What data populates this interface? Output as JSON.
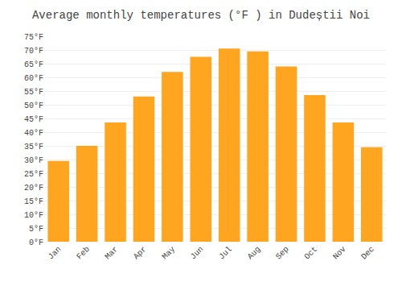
{
  "chart_data": {
    "type": "bar",
    "title": "Average monthly temperatures (°F ) in Dudeștii Noi",
    "categories": [
      "Jan",
      "Feb",
      "Mar",
      "Apr",
      "May",
      "Jun",
      "Jul",
      "Aug",
      "Sep",
      "Oct",
      "Nov",
      "Dec"
    ],
    "values": [
      29.5,
      35.0,
      43.5,
      53.0,
      62.0,
      67.5,
      70.5,
      69.5,
      64.0,
      53.5,
      43.5,
      34.5
    ],
    "color": "#FFA520",
    "ylim": [
      0,
      75
    ],
    "yticks": [
      {
        "value": 0,
        "label": "0°F"
      },
      {
        "value": 5,
        "label": "5°F"
      },
      {
        "value": 10,
        "label": "10°F"
      },
      {
        "value": 15,
        "label": "15°F"
      },
      {
        "value": 20,
        "label": "20°F"
      },
      {
        "value": 25,
        "label": "25°F"
      },
      {
        "value": 30,
        "label": "30°F"
      },
      {
        "value": 35,
        "label": "35°F"
      },
      {
        "value": 40,
        "label": "40°F"
      },
      {
        "value": 45,
        "label": "45°F"
      },
      {
        "value": 50,
        "label": "50°F"
      },
      {
        "value": 55,
        "label": "55°F"
      },
      {
        "value": 60,
        "label": "60°F"
      },
      {
        "value": 65,
        "label": "65°F"
      },
      {
        "value": 70,
        "label": "70°F"
      },
      {
        "value": 75,
        "label": "75°F"
      }
    ],
    "grid": true
  }
}
